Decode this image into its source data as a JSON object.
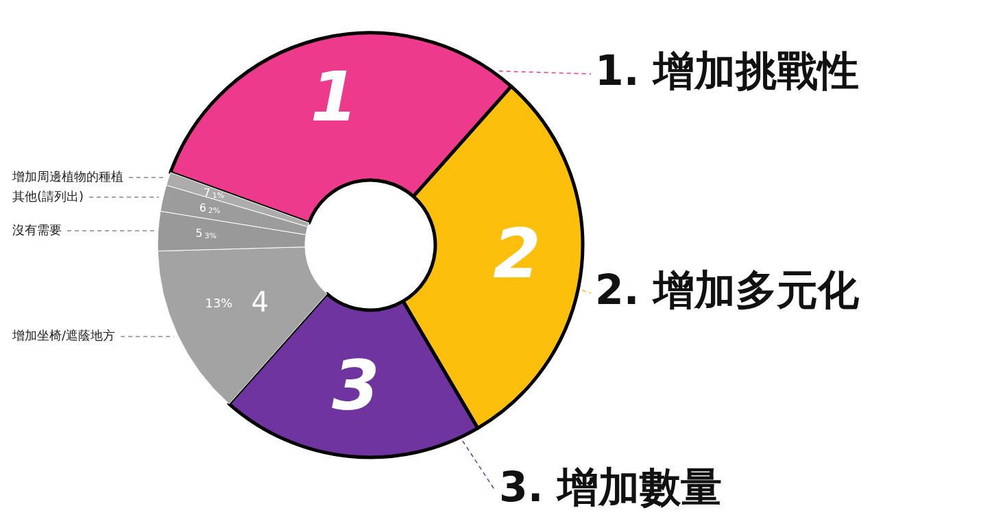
{
  "chart_data": {
    "type": "donut",
    "categories": [
      "1. 增加挑戰性",
      "2. 增加多元化",
      "3. 增加數量",
      "增加坐椅/遮蔭地方",
      "沒有需要",
      "其他(請列出)",
      "增加周邊植物的種植"
    ],
    "values": [
      31,
      30,
      20,
      13,
      3,
      2,
      1
    ],
    "colors": [
      "#ee3a8c",
      "#fbbf0c",
      "#6f34a0",
      "#a3a3a3",
      "#999999",
      "#9c9c9c",
      "#acacac"
    ],
    "value_labels": [
      null,
      null,
      null,
      "13%",
      "3%",
      "2%",
      "1%"
    ],
    "annotations": [
      {
        "text": "1",
        "x": "1. 增加挑戰性"
      },
      {
        "text": "2",
        "x": "2. 增加多元化"
      },
      {
        "text": "3",
        "x": "3. 增加數量"
      },
      {
        "text": "4",
        "x": "增加坐椅/遮蔭地方"
      },
      {
        "text": "5",
        "x": "沒有需要"
      },
      {
        "text": "6",
        "x": "其他(請列出)"
      },
      {
        "text": "7",
        "x": "增加周邊植物的種植"
      }
    ],
    "legend": false
  }
}
